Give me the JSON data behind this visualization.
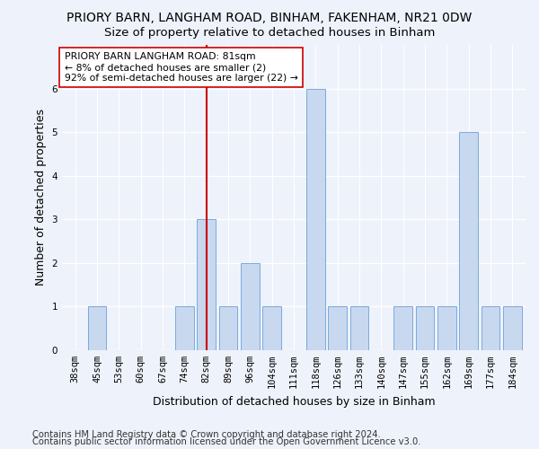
{
  "title": "PRIORY BARN, LANGHAM ROAD, BINHAM, FAKENHAM, NR21 0DW",
  "subtitle": "Size of property relative to detached houses in Binham",
  "xlabel": "Distribution of detached houses by size in Binham",
  "ylabel": "Number of detached properties",
  "categories": [
    "38sqm",
    "45sqm",
    "53sqm",
    "60sqm",
    "67sqm",
    "74sqm",
    "82sqm",
    "89sqm",
    "96sqm",
    "104sqm",
    "111sqm",
    "118sqm",
    "126sqm",
    "133sqm",
    "140sqm",
    "147sqm",
    "155sqm",
    "162sqm",
    "169sqm",
    "177sqm",
    "184sqm"
  ],
  "values": [
    0,
    1,
    0,
    0,
    0,
    1,
    3,
    1,
    2,
    1,
    0,
    6,
    1,
    1,
    0,
    1,
    1,
    1,
    5,
    1,
    1
  ],
  "bar_color": "#c8d8ef",
  "bar_edge_color": "#7aabdc",
  "highlight_index": 6,
  "highlight_line_color": "#cc0000",
  "annotation_text": "PRIORY BARN LANGHAM ROAD: 81sqm\n← 8% of detached houses are smaller (2)\n92% of semi-detached houses are larger (22) →",
  "annotation_box_color": "#ffffff",
  "annotation_box_edge": "#cc0000",
  "ylim": [
    0,
    7
  ],
  "yticks": [
    0,
    1,
    2,
    3,
    4,
    5,
    6
  ],
  "footer_line1": "Contains HM Land Registry data © Crown copyright and database right 2024.",
  "footer_line2": "Contains public sector information licensed under the Open Government Licence v3.0.",
  "background_color": "#eef2fb",
  "plot_background": "#eef2fb",
  "grid_color": "#ffffff",
  "title_fontsize": 10,
  "subtitle_fontsize": 9.5,
  "label_fontsize": 9,
  "tick_fontsize": 7.5,
  "annotation_fontsize": 7.8,
  "footer_fontsize": 7.2
}
